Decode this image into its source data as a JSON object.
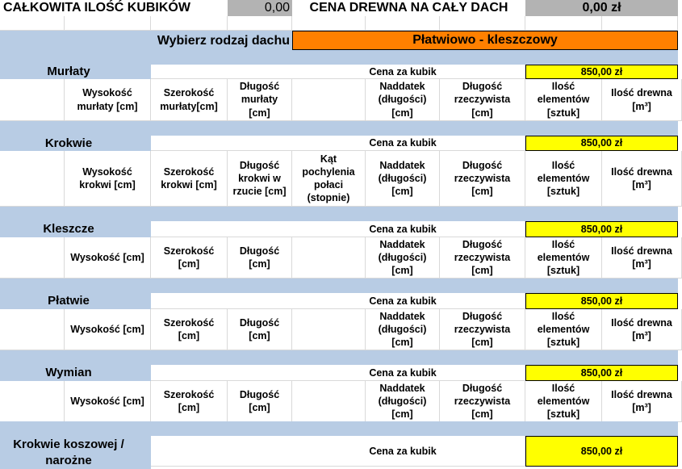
{
  "summary": {
    "total_cubic_label": "CAŁKOWITA ILOŚĆ KUBIKÓW",
    "total_cubic_value": "0,00",
    "total_price_label": "CENA DREWNA NA CAŁY DACH",
    "total_price_value": "0,00 zł"
  },
  "roof_type": {
    "label": "Wybierz rodzaj dachu",
    "value": "Płatwiowo - kleszczowy"
  },
  "colors": {
    "header_blue": "#b8cce4",
    "select_orange": "#ff8000",
    "price_yellow": "#ffff00",
    "summary_grey": "#b3b3b3"
  },
  "sections": [
    {
      "title": "Murłaty",
      "price_label": "Cena za kubik",
      "price": "850,00 zł",
      "columns": [
        "Wysokość murłaty [cm]",
        "Szerokość murłaty[cm]",
        "Długość murłaty [cm]",
        "",
        "Naddatek (długości) [cm]",
        "Długość rzeczywista [cm]",
        "Ilość elementów [sztuk]",
        "Ilość drewna [m³]"
      ]
    },
    {
      "title": "Krokwie",
      "price_label": "Cena za kubik",
      "price": "850,00 zł",
      "columns": [
        "Wysokość krokwi [cm]",
        "Szerokość krokwi [cm]",
        "Długość krokwi w rzucie [cm]",
        "Kąt pochylenia połaci (stopnie)",
        "Naddatek (długości) [cm]",
        "Długość rzeczywista [cm]",
        "Ilość elementów [sztuk]",
        "Ilość drewna [m³]"
      ]
    },
    {
      "title": "Kleszcze",
      "price_label": "Cena za kubik",
      "price": "850,00 zł",
      "columns": [
        "Wysokość [cm]",
        "Szerokość [cm]",
        "Długość [cm]",
        "",
        "Naddatek (długości) [cm]",
        "Długość rzeczywista [cm]",
        "Ilość elementów [sztuk]",
        "Ilość drewna [m³]"
      ]
    },
    {
      "title": "Płatwie",
      "price_label": "Cena za kubik",
      "price": "850,00 zł",
      "columns": [
        "Wysokość [cm]",
        "Szerokość [cm]",
        "Długość [cm]",
        "",
        "Naddatek (długości) [cm]",
        "Długość rzeczywista [cm]",
        "Ilość elementów [sztuk]",
        "Ilość drewna [m³]"
      ]
    },
    {
      "title": "Wymian",
      "price_label": "Cena za kubik",
      "price": "850,00 zł",
      "columns": [
        "Wysokość [cm]",
        "Szerokość [cm]",
        "Długość [cm]",
        "",
        "Naddatek (długości) [cm]",
        "Długość rzeczywista [cm]",
        "Ilość elementów [sztuk]",
        "Ilość drewna [m³]"
      ]
    },
    {
      "title": "Krokwie koszowej / narożne",
      "price_label": "Cena za kubik",
      "price": "850,00 zł",
      "columns": []
    }
  ]
}
